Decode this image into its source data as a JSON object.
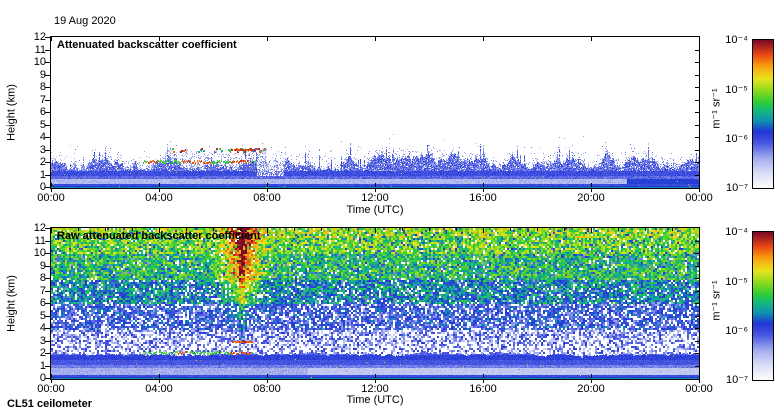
{
  "figure": {
    "date_label": "19 Aug 2020",
    "footer_label": "CL51 ceilometer",
    "background": "#ffffff",
    "frame_color": "#000000"
  },
  "colorbar": {
    "unit_label": "m⁻¹ sr⁻¹",
    "tick_labels": [
      "10⁻⁴",
      "10⁻⁵",
      "10⁻⁶",
      "10⁻⁷"
    ],
    "scale": "log",
    "range_min": "1e-7",
    "range_max": "1e-4",
    "colormap_stops": [
      [
        0.0,
        "#fdfdff"
      ],
      [
        0.1,
        "#dadef6"
      ],
      [
        0.2,
        "#a3adee"
      ],
      [
        0.3,
        "#4a58e2"
      ],
      [
        0.38,
        "#2136d6"
      ],
      [
        0.45,
        "#0f8fb4"
      ],
      [
        0.52,
        "#12b97e"
      ],
      [
        0.58,
        "#2fce38"
      ],
      [
        0.66,
        "#90da1e"
      ],
      [
        0.74,
        "#e8e41e"
      ],
      [
        0.82,
        "#f8a70f"
      ],
      [
        0.9,
        "#ee4a14"
      ],
      [
        1.0,
        "#7c0a28"
      ]
    ]
  },
  "chart_data": [
    {
      "type": "heatmap",
      "title": "Attenuated backscatter coefficient",
      "xlabel": "Time (UTC)",
      "ylabel": "Height (km)",
      "x_ticks": [
        "00:00",
        "04:00",
        "08:00",
        "12:00",
        "16:00",
        "20:00",
        "00:00"
      ],
      "x_tick_hours": [
        0,
        4,
        8,
        12,
        16,
        20,
        24
      ],
      "y_ticks": [
        12,
        11,
        10,
        9,
        8,
        7,
        6,
        5,
        4,
        3,
        2,
        1,
        0
      ],
      "xlim_hours": [
        0,
        24
      ],
      "ylim_km": [
        0,
        12
      ],
      "value_min": "1e-7",
      "value_max": "1e-4",
      "units": "m⁻¹ sr⁻¹",
      "summary": "Boundary-layer aerosol backscatter up to ~2.5 km all day; thin elevated layer near 2 km from ~03:30 to 07:30 UTC; scattered cloud/aerosol bits near 3 km from ~04:30 to 08:00 UTC; clear air (white) above.",
      "render": {
        "seed": 1337,
        "mode": "clean",
        "band_top_km": 2.0,
        "streak": {
          "t0": 3.4,
          "t1": 7.55,
          "km": 2.05,
          "red_spans": [
            [
              3.5,
              3.95
            ],
            [
              4.8,
              5.9
            ],
            [
              6.6,
              7.4
            ]
          ]
        },
        "clouds": {
          "km0": 2.85,
          "km1": 3.15,
          "spans": [
            [
              4.3,
              4.55
            ],
            [
              4.75,
              5.0
            ],
            [
              5.45,
              5.62
            ],
            [
              6.05,
              6.3
            ],
            [
              6.5,
              7.9
            ]
          ],
          "red_dash": [
            6.85,
            7.5
          ]
        },
        "light_gap": [
          7.6,
          8.6
        ]
      }
    },
    {
      "type": "heatmap",
      "title": "Raw attenuated backscatter coefficient",
      "xlabel": "Time (UTC)",
      "ylabel": "Height (km)",
      "x_ticks": [
        "00:00",
        "04:00",
        "08:00",
        "12:00",
        "16:00",
        "20:00",
        "00:00"
      ],
      "x_tick_hours": [
        0,
        4,
        8,
        12,
        16,
        20,
        24
      ],
      "y_ticks": [
        12,
        11,
        10,
        9,
        8,
        7,
        6,
        5,
        4,
        3,
        2,
        1,
        0
      ],
      "xlim_hours": [
        0,
        24
      ],
      "ylim_km": [
        0,
        12
      ],
      "value_min": "1e-7",
      "value_max": "1e-4",
      "units": "m⁻¹ sr⁻¹",
      "summary": "Raw signal dominated by noise speckle that increases with height (blue low, green/yellow aloft); strong orange/red noise plume ~06:00-08:00 UTC reaching 12 km; smooth boundary-layer aerosol band below ~2 km.",
      "render": {
        "seed": 2024,
        "mode": "raw",
        "band_top_km": 1.95,
        "empty_prob": [
          [
            3,
            0.52
          ],
          [
            4,
            0.38
          ],
          [
            6,
            0.22
          ],
          [
            8,
            0.11
          ],
          [
            13,
            0.06
          ]
        ],
        "base_value": [
          [
            4,
            0.24
          ],
          [
            6,
            0.33
          ],
          [
            8,
            0.46
          ],
          [
            10,
            0.56
          ],
          [
            13,
            0.63
          ]
        ],
        "plume": {
          "t_center": 7.05,
          "t_sigma": 0.45,
          "km_start": 4.5,
          "gain": 0.34
        },
        "streak": {
          "t0": 3.4,
          "t1": 7.5,
          "km": 2.05,
          "red_spans": [
            [
              4.7,
              5.0
            ],
            [
              6.6,
              7.4
            ]
          ]
        },
        "red_dash": {
          "t0": 6.7,
          "t1": 7.45,
          "km": 3.0
        }
      }
    }
  ]
}
